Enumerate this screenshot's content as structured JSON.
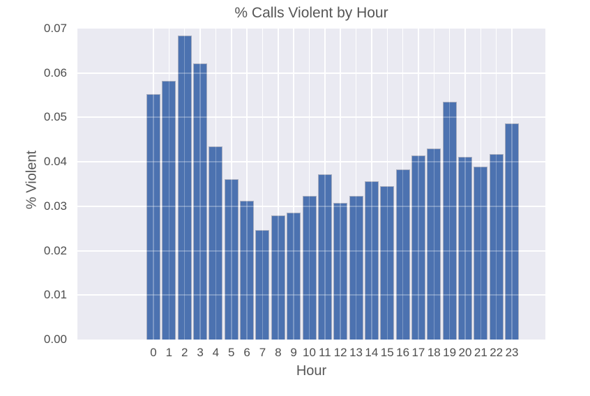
{
  "chart_data": {
    "type": "bar",
    "title": "% Calls Violent by Hour",
    "xlabel": "Hour",
    "ylabel": "% Violent",
    "categories": [
      "0",
      "1",
      "2",
      "3",
      "4",
      "5",
      "6",
      "7",
      "8",
      "9",
      "10",
      "11",
      "12",
      "13",
      "14",
      "15",
      "16",
      "17",
      "18",
      "19",
      "20",
      "21",
      "22",
      "23"
    ],
    "values": [
      0.0552,
      0.0583,
      0.0685,
      0.0622,
      0.0434,
      0.0361,
      0.0313,
      0.0246,
      0.0279,
      0.0286,
      0.0324,
      0.0372,
      0.0308,
      0.0324,
      0.0356,
      0.0345,
      0.0383,
      0.0415,
      0.043,
      0.0535,
      0.0411,
      0.0389,
      0.0418,
      0.0487
    ],
    "ylim": [
      0,
      0.07
    ],
    "yticks": [
      0.0,
      0.01,
      0.02,
      0.03,
      0.04,
      0.05,
      0.06,
      0.07
    ],
    "ytick_labels": [
      "0.00",
      "0.01",
      "0.02",
      "0.03",
      "0.04",
      "0.05",
      "0.06",
      "0.07"
    ],
    "grid": true,
    "legend": "none",
    "colors": {
      "bar": "#4c72b0",
      "bar_edge": "#a7adbf",
      "plot_background": "#eaeaf2",
      "gridline": "#ffffff",
      "text": "#4d4d4d",
      "figure_background": "#ffffff"
    }
  }
}
